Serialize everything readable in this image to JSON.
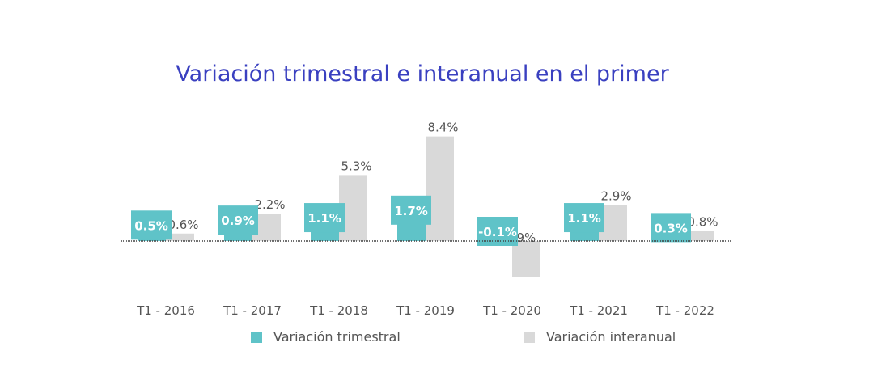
{
  "chart_data": {
    "type": "bar",
    "title": "Variación trimestral e interanual en el primer",
    "categories": [
      "T1 - 2016",
      "T1 - 2017",
      "T1 - 2018",
      "T1 - 2019",
      "T1 - 2020",
      "T1 - 2021",
      "T1 - 2022"
    ],
    "series": [
      {
        "name": "Variación trimestral",
        "color": "#5fc3c8",
        "values": [
          0.5,
          0.9,
          1.1,
          1.7,
          -0.1,
          1.1,
          0.3
        ],
        "labels": [
          "0.5%",
          "0.9%",
          "1.1%",
          "1.7%",
          "-0.1%",
          "1.1%",
          "0.3%"
        ]
      },
      {
        "name": "Variación interanual",
        "color": "#d9d9d9",
        "values": [
          0.6,
          2.2,
          5.3,
          8.4,
          -2.9,
          2.9,
          0.8
        ],
        "labels": [
          "0.6%",
          "2.2%",
          "5.3%",
          "8.4%",
          "-2.9%",
          "2.9%",
          "0.8%"
        ]
      }
    ],
    "xlabel": "",
    "ylabel": "",
    "grid": false,
    "legend": "bottom"
  }
}
